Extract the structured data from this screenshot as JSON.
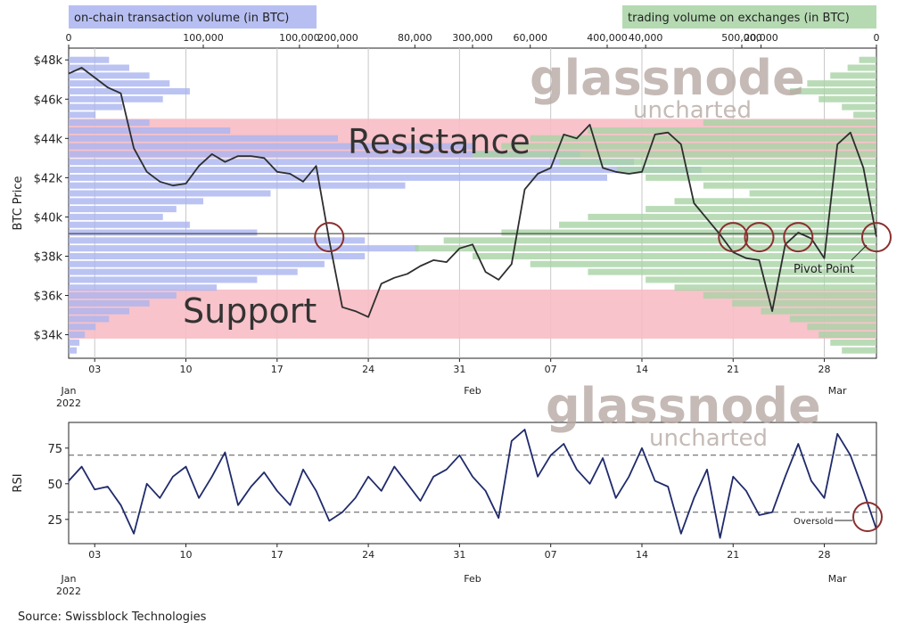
{
  "source": "Source: Swissblock Technologies",
  "watermark": {
    "brand": "glassnode",
    "sub": "uncharted"
  },
  "colors": {
    "onchain": "#aab4f0",
    "exchange": "#a8d3a5",
    "resistance": "#f7bcc4",
    "price": "#2e2e2e",
    "rsi": "#1f2a6b",
    "circle": "#8b2f2f",
    "watermark": "#b7aaa4"
  },
  "chart_data": [
    {
      "type": "line",
      "ylabel": "BTC Price",
      "ylim": [
        32800,
        48600
      ],
      "yticks": [
        34000,
        36000,
        38000,
        40000,
        42000,
        44000,
        46000,
        48000
      ],
      "ytick_labels": [
        "$34k",
        "$36k",
        "$38k",
        "$40k",
        "$42k",
        "$44k",
        "$46k",
        "$48k"
      ],
      "x_range": [
        "2022-01-01",
        "2022-03-04"
      ],
      "xticks": [
        {
          "date": "2022-01-03",
          "label": "03"
        },
        {
          "date": "2022-01-10",
          "label": "10"
        },
        {
          "date": "2022-01-17",
          "label": "17"
        },
        {
          "date": "2022-01-24",
          "label": "24"
        },
        {
          "date": "2022-01-31",
          "label": "31"
        },
        {
          "date": "2022-02-07",
          "label": "07"
        },
        {
          "date": "2022-02-14",
          "label": "14"
        },
        {
          "date": "2022-02-21",
          "label": "21"
        },
        {
          "date": "2022-02-28",
          "label": "28"
        }
      ],
      "month_labels": [
        {
          "date": "2022-01-01",
          "label": "Jan",
          "year": "2022"
        },
        {
          "date": "2022-02-01",
          "label": "Feb",
          "year": ""
        },
        {
          "date": "2022-03-01",
          "label": "Mar",
          "year": ""
        }
      ],
      "grid": "vertical",
      "series": [
        {
          "x": [
            "2022-01-01",
            "2022-01-02",
            "2022-01-03",
            "2022-01-04",
            "2022-01-05",
            "2022-01-06",
            "2022-01-07",
            "2022-01-08",
            "2022-01-09",
            "2022-01-10",
            "2022-01-11",
            "2022-01-12",
            "2022-01-13",
            "2022-01-14",
            "2022-01-15",
            "2022-01-16",
            "2022-01-17",
            "2022-01-18",
            "2022-01-19",
            "2022-01-20",
            "2022-01-21",
            "2022-01-22",
            "2022-01-23",
            "2022-01-24",
            "2022-01-25",
            "2022-01-26",
            "2022-01-27",
            "2022-01-28",
            "2022-01-29",
            "2022-01-30",
            "2022-01-31",
            "2022-02-01",
            "2022-02-02",
            "2022-02-03",
            "2022-02-04",
            "2022-02-05",
            "2022-02-06",
            "2022-02-07",
            "2022-02-08",
            "2022-02-09",
            "2022-02-10",
            "2022-02-11",
            "2022-02-12",
            "2022-02-13",
            "2022-02-14",
            "2022-02-15",
            "2022-02-16",
            "2022-02-17",
            "2022-02-18",
            "2022-02-19",
            "2022-02-20",
            "2022-02-21",
            "2022-02-22",
            "2022-02-23",
            "2022-02-24",
            "2022-02-25",
            "2022-02-26",
            "2022-02-27",
            "2022-02-28",
            "2022-03-01",
            "2022-03-02",
            "2022-03-03",
            "2022-03-04"
          ],
          "values": [
            47300,
            47600,
            47100,
            46600,
            46300,
            43500,
            42300,
            41800,
            41600,
            41700,
            42600,
            43200,
            42800,
            43100,
            43100,
            43000,
            42300,
            42200,
            41800,
            42600,
            38800,
            35400,
            35200,
            34900,
            36600,
            36900,
            37100,
            37500,
            37800,
            37700,
            38400,
            38600,
            37200,
            36800,
            37600,
            41400,
            42200,
            42500,
            44200,
            44000,
            44700,
            42500,
            42300,
            42200,
            42300,
            44200,
            44300,
            43700,
            40700,
            39900,
            39100,
            38200,
            37900,
            37800,
            35200,
            38600,
            39200,
            38900,
            37900,
            43700,
            44300,
            42500,
            39000
          ]
        }
      ],
      "bands": [
        {
          "name": "Resistance",
          "from": 43000,
          "to": 45000
        },
        {
          "name": "Support",
          "from": 33800,
          "to": 36300
        }
      ],
      "pivot_line": 39150,
      "left_axis": {
        "label": "on-chain transaction volume (in BTC)",
        "ticks": [
          0,
          100000,
          200000,
          300000,
          400000,
          500000
        ],
        "tick_labels": [
          "0",
          "100,000",
          "200,000",
          "300,000",
          "400,000",
          "500,000"
        ]
      },
      "right_axis": {
        "label": "trading volume on exchanges (in BTC)",
        "ticks": [
          100000,
          80000,
          60000,
          40000,
          20000,
          0
        ],
        "tick_labels": [
          "100,000",
          "80,000",
          "60,000",
          "40,000",
          "20,000",
          "0"
        ]
      },
      "volume_profile_left": [
        {
          "price": 48000,
          "volume": 30000
        },
        {
          "price": 47600,
          "volume": 45000
        },
        {
          "price": 47200,
          "volume": 60000
        },
        {
          "price": 46800,
          "volume": 75000
        },
        {
          "price": 46400,
          "volume": 90000
        },
        {
          "price": 46000,
          "volume": 70000
        },
        {
          "price": 45600,
          "volume": 40000
        },
        {
          "price": 45200,
          "volume": 20000
        },
        {
          "price": 44800,
          "volume": 60000
        },
        {
          "price": 44400,
          "volume": 120000
        },
        {
          "price": 44000,
          "volume": 200000
        },
        {
          "price": 43600,
          "volume": 300000
        },
        {
          "price": 43200,
          "volume": 380000
        },
        {
          "price": 42800,
          "volume": 420000
        },
        {
          "price": 42400,
          "volume": 470000
        },
        {
          "price": 42000,
          "volume": 400000
        },
        {
          "price": 41600,
          "volume": 250000
        },
        {
          "price": 41200,
          "volume": 150000
        },
        {
          "price": 40800,
          "volume": 100000
        },
        {
          "price": 40400,
          "volume": 80000
        },
        {
          "price": 40000,
          "volume": 70000
        },
        {
          "price": 39600,
          "volume": 90000
        },
        {
          "price": 39200,
          "volume": 140000
        },
        {
          "price": 38800,
          "volume": 220000
        },
        {
          "price": 38400,
          "volume": 260000
        },
        {
          "price": 38000,
          "volume": 220000
        },
        {
          "price": 37600,
          "volume": 190000
        },
        {
          "price": 37200,
          "volume": 170000
        },
        {
          "price": 36800,
          "volume": 140000
        },
        {
          "price": 36400,
          "volume": 110000
        },
        {
          "price": 36000,
          "volume": 80000
        },
        {
          "price": 35600,
          "volume": 60000
        },
        {
          "price": 35200,
          "volume": 45000
        },
        {
          "price": 34800,
          "volume": 30000
        },
        {
          "price": 34400,
          "volume": 20000
        },
        {
          "price": 34000,
          "volume": 12000
        },
        {
          "price": 33600,
          "volume": 8000
        },
        {
          "price": 33200,
          "volume": 6000
        }
      ],
      "volume_profile_right": [
        {
          "price": 48000,
          "volume": 3000
        },
        {
          "price": 47600,
          "volume": 5000
        },
        {
          "price": 47200,
          "volume": 8000
        },
        {
          "price": 46800,
          "volume": 12000
        },
        {
          "price": 46400,
          "volume": 15000
        },
        {
          "price": 46000,
          "volume": 10000
        },
        {
          "price": 45600,
          "volume": 6000
        },
        {
          "price": 45200,
          "volume": 4000
        },
        {
          "price": 44800,
          "volume": 30000
        },
        {
          "price": 44400,
          "volume": 50000
        },
        {
          "price": 44000,
          "volume": 60000
        },
        {
          "price": 43600,
          "volume": 65000
        },
        {
          "price": 43200,
          "volume": 70000
        },
        {
          "price": 42800,
          "volume": 55000
        },
        {
          "price": 42400,
          "volume": 45000
        },
        {
          "price": 42000,
          "volume": 40000
        },
        {
          "price": 41600,
          "volume": 30000
        },
        {
          "price": 41200,
          "volume": 22000
        },
        {
          "price": 40800,
          "volume": 35000
        },
        {
          "price": 40400,
          "volume": 40000
        },
        {
          "price": 40000,
          "volume": 50000
        },
        {
          "price": 39600,
          "volume": 55000
        },
        {
          "price": 39200,
          "volume": 65000
        },
        {
          "price": 38800,
          "volume": 75000
        },
        {
          "price": 38400,
          "volume": 80000
        },
        {
          "price": 38000,
          "volume": 70000
        },
        {
          "price": 37600,
          "volume": 60000
        },
        {
          "price": 37200,
          "volume": 50000
        },
        {
          "price": 36800,
          "volume": 40000
        },
        {
          "price": 36400,
          "volume": 35000
        },
        {
          "price": 36000,
          "volume": 30000
        },
        {
          "price": 35600,
          "volume": 25000
        },
        {
          "price": 35200,
          "volume": 20000
        },
        {
          "price": 34800,
          "volume": 15000
        },
        {
          "price": 34400,
          "volume": 12000
        },
        {
          "price": 34000,
          "volume": 10000
        },
        {
          "price": 33600,
          "volume": 8000
        },
        {
          "price": 33200,
          "volume": 6000
        }
      ],
      "annotations": {
        "resistance": "Resistance",
        "support": "Support",
        "pivot": "Pivot Point"
      },
      "circled_dates": [
        "2022-01-21",
        "2022-02-21",
        "2022-02-23",
        "2022-02-26",
        "2022-03-04"
      ]
    },
    {
      "type": "line",
      "ylabel": "RSI",
      "ylim": [
        8,
        93
      ],
      "yticks": [
        25,
        50,
        75
      ],
      "ytick_labels": [
        "25",
        "50",
        "75"
      ],
      "x_range": [
        "2022-01-01",
        "2022-03-04"
      ],
      "reference_lines": [
        70,
        30
      ],
      "series": [
        {
          "x": [
            "2022-01-01",
            "2022-01-02",
            "2022-01-03",
            "2022-01-04",
            "2022-01-05",
            "2022-01-06",
            "2022-01-07",
            "2022-01-08",
            "2022-01-09",
            "2022-01-10",
            "2022-01-11",
            "2022-01-12",
            "2022-01-13",
            "2022-01-14",
            "2022-01-15",
            "2022-01-16",
            "2022-01-17",
            "2022-01-18",
            "2022-01-19",
            "2022-01-20",
            "2022-01-21",
            "2022-01-22",
            "2022-01-23",
            "2022-01-24",
            "2022-01-25",
            "2022-01-26",
            "2022-01-27",
            "2022-01-28",
            "2022-01-29",
            "2022-01-30",
            "2022-01-31",
            "2022-02-01",
            "2022-02-02",
            "2022-02-03",
            "2022-02-04",
            "2022-02-05",
            "2022-02-06",
            "2022-02-07",
            "2022-02-08",
            "2022-02-09",
            "2022-02-10",
            "2022-02-11",
            "2022-02-12",
            "2022-02-13",
            "2022-02-14",
            "2022-02-15",
            "2022-02-16",
            "2022-02-17",
            "2022-02-18",
            "2022-02-19",
            "2022-02-20",
            "2022-02-21",
            "2022-02-22",
            "2022-02-23",
            "2022-02-24",
            "2022-02-25",
            "2022-02-26",
            "2022-02-27",
            "2022-02-28",
            "2022-03-01",
            "2022-03-02",
            "2022-03-03",
            "2022-03-04"
          ],
          "values": [
            52,
            62,
            46,
            48,
            35,
            15,
            50,
            40,
            55,
            62,
            40,
            55,
            72,
            35,
            48,
            58,
            45,
            35,
            60,
            45,
            24,
            30,
            40,
            55,
            45,
            62,
            50,
            38,
            55,
            60,
            70,
            55,
            45,
            26,
            80,
            88,
            55,
            70,
            78,
            60,
            50,
            68,
            40,
            55,
            75,
            52,
            48,
            15,
            40,
            60,
            12,
            55,
            45,
            28,
            30,
            55,
            78,
            52,
            40,
            85,
            70,
            45,
            18
          ]
        }
      ],
      "annotations": {
        "oversold": "Oversold"
      }
    }
  ]
}
